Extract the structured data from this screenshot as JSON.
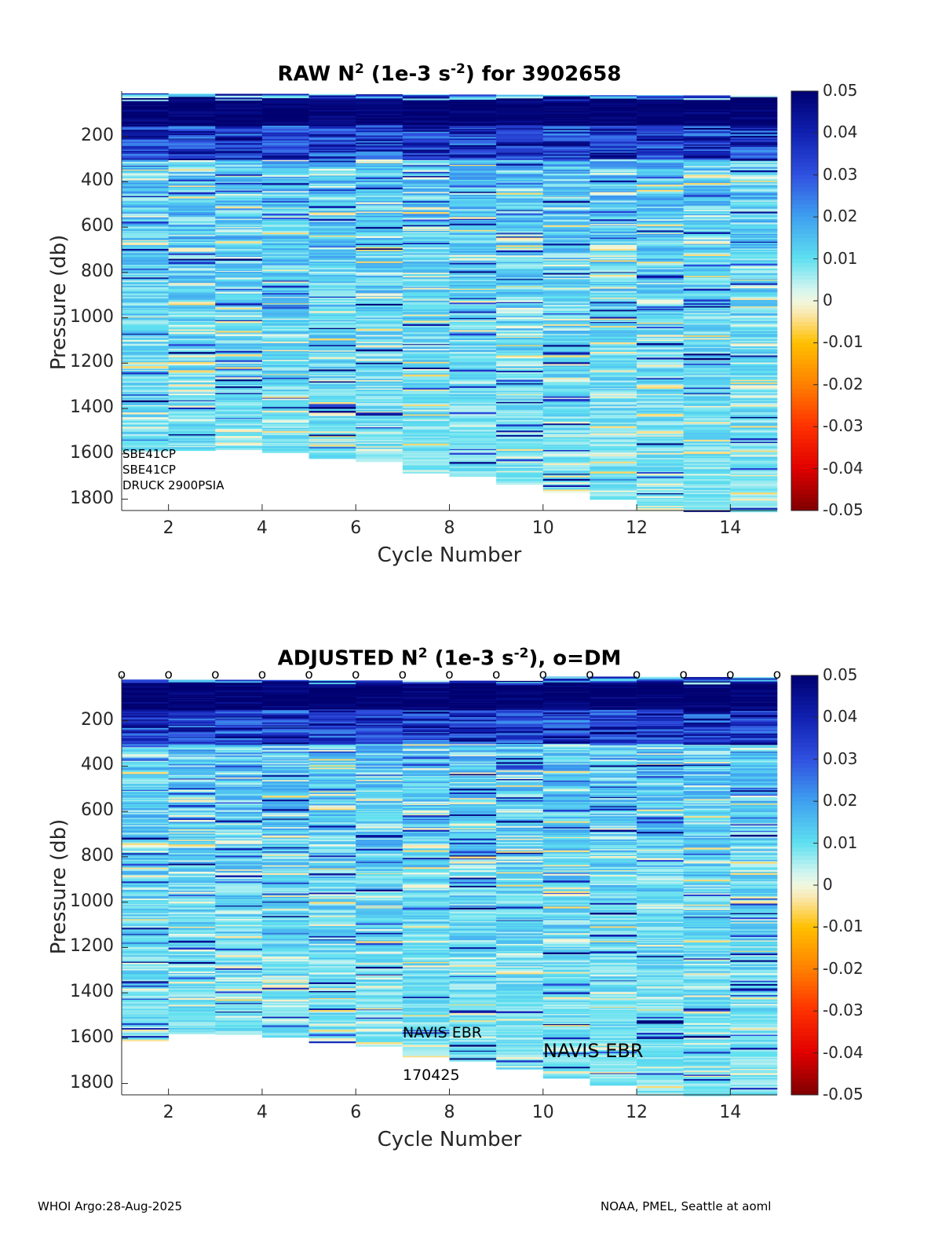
{
  "footer": {
    "left": "WHOI Argo:28-Aug-2025",
    "right": "NOAA, PMEL, Seattle at aoml"
  },
  "colormap": {
    "stops": [
      {
        "v": -0.05,
        "c": "#7f0000"
      },
      {
        "v": -0.04,
        "c": "#e00000"
      },
      {
        "v": -0.03,
        "c": "#ff3000"
      },
      {
        "v": -0.02,
        "c": "#ff8000"
      },
      {
        "v": -0.01,
        "c": "#ffc000"
      },
      {
        "v": -0.003,
        "c": "#fbe8b0"
      },
      {
        "v": 0.0,
        "c": "#f0f8e0"
      },
      {
        "v": 0.003,
        "c": "#d0f4f0"
      },
      {
        "v": 0.01,
        "c": "#5fe0f0"
      },
      {
        "v": 0.02,
        "c": "#3fa0f0"
      },
      {
        "v": 0.03,
        "c": "#3050e0"
      },
      {
        "v": 0.04,
        "c": "#1020b0"
      },
      {
        "v": 0.05,
        "c": "#000070"
      }
    ]
  },
  "chart_data": [
    {
      "id": "raw",
      "type": "heatmap",
      "title_main": "RAW N",
      "title_sup1": "2",
      "title_mid": " (1e-3 s",
      "title_sup2": "-2",
      "title_end": ") for 3902658",
      "xlabel": "Cycle Number",
      "ylabel": "Pressure (db)",
      "xlim": [
        1,
        15
      ],
      "ylim": [
        0,
        1850
      ],
      "y_reversed": true,
      "xticks": [
        2,
        4,
        6,
        8,
        10,
        12,
        14
      ],
      "yticks": [
        200,
        400,
        600,
        800,
        1000,
        1200,
        1400,
        1600,
        1800
      ],
      "clim": [
        -0.05,
        0.05
      ],
      "colorbar_ticks": [
        "0.05",
        "0.04",
        "0.03",
        "0.02",
        "0.01",
        "0",
        "-0.01",
        "-0.02",
        "-0.03",
        "-0.04",
        "-0.05"
      ],
      "cycles": [
        1,
        2,
        3,
        4,
        5,
        6,
        7,
        8,
        9,
        10,
        11,
        12,
        13,
        14
      ],
      "profile_max_pressure": [
        1590,
        1580,
        1580,
        1590,
        1620,
        1630,
        1680,
        1700,
        1730,
        1770,
        1800,
        1850,
        1850,
        1850
      ],
      "annotations": [
        "SBE41CP",
        "SBE41CP",
        "DRUCK 2900PSIA"
      ]
    },
    {
      "id": "adjusted",
      "type": "heatmap",
      "title_main": "ADJUSTED N",
      "title_sup1": "2",
      "title_mid": " (1e-3 s",
      "title_sup2": "-2",
      "title_end": "), o=DM",
      "xlabel": "Cycle Number",
      "ylabel": "Pressure (db)",
      "xlim": [
        1,
        15
      ],
      "ylim": [
        0,
        1850
      ],
      "y_reversed": true,
      "xticks": [
        2,
        4,
        6,
        8,
        10,
        12,
        14
      ],
      "yticks": [
        200,
        400,
        600,
        800,
        1000,
        1200,
        1400,
        1600,
        1800
      ],
      "clim": [
        -0.05,
        0.05
      ],
      "colorbar_ticks": [
        "0.05",
        "0.04",
        "0.03",
        "0.02",
        "0.01",
        "0",
        "-0.01",
        "-0.02",
        "-0.03",
        "-0.04",
        "-0.05"
      ],
      "cycles": [
        1,
        2,
        3,
        4,
        5,
        6,
        7,
        8,
        9,
        10,
        11,
        12,
        13,
        14
      ],
      "profile_max_pressure": [
        1610,
        1580,
        1580,
        1590,
        1620,
        1630,
        1680,
        1700,
        1730,
        1770,
        1800,
        1850,
        1850,
        1850
      ],
      "dm_marker": "o",
      "dm_cycles": [
        1,
        2,
        3,
        4,
        5,
        6,
        7,
        8,
        9,
        10,
        11,
        12,
        13,
        14,
        15
      ],
      "annotations": [
        "NAVIS EBR",
        "170425",
        "NAVIS EBR"
      ]
    }
  ]
}
